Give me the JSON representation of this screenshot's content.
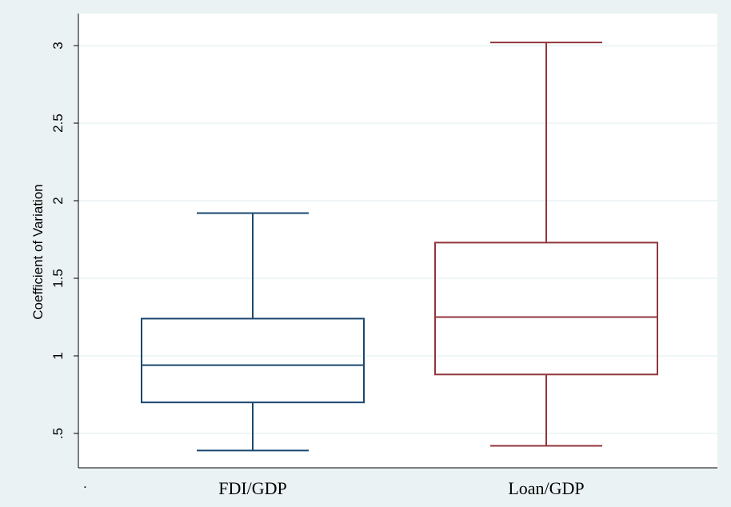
{
  "chart_data": {
    "type": "box",
    "ylabel": "Coefficient of Variation",
    "xlabel": "",
    "corner_mark": ".",
    "ylim": [
      0.3,
      3.2
    ],
    "yticks": [
      0.5,
      1,
      1.5,
      2,
      2.5,
      3
    ],
    "ytick_labels": [
      ".5",
      "1",
      "1.5",
      "2",
      "2.5",
      "3"
    ],
    "grid": true,
    "categories": [
      "FDI/GDP",
      "Loan/GDP"
    ],
    "series": [
      {
        "category": "FDI/GDP",
        "color": "#1a476f",
        "min": 0.39,
        "q1": 0.7,
        "median": 0.94,
        "q3": 1.24,
        "max": 1.92
      },
      {
        "category": "Loan/GDP",
        "color": "#90353b",
        "min": 0.42,
        "q1": 0.88,
        "median": 1.25,
        "q3": 1.73,
        "max": 3.02
      }
    ]
  }
}
